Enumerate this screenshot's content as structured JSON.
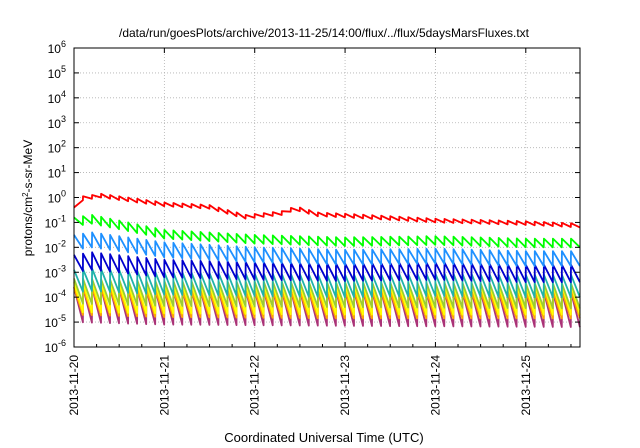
{
  "chart_data": {
    "type": "line",
    "title": "/data/run/goesPlots/archive/2013-11-25/14:00/flux/../flux/5daysMarsFluxes.txt",
    "xlabel": "Coordinated Universal Time (UTC)",
    "ylabel": {
      "pre": "protons/cm",
      "sup": "2",
      "post": "-s-sr-MeV"
    },
    "yscale": "log",
    "ylim_exp": [
      -6,
      6
    ],
    "ytick_base": "10",
    "ytick_exponents": [
      "6",
      "5",
      "4",
      "3",
      "2",
      "1",
      "0",
      "-1",
      "-2",
      "-3",
      "-4",
      "-5",
      "-6"
    ],
    "xlim_days": [
      0,
      5.6
    ],
    "x_ticks": [
      {
        "day": 0,
        "label": "2013-11-20"
      },
      {
        "day": 1,
        "label": "2013-11-21"
      },
      {
        "day": 2,
        "label": "2013-11-22"
      },
      {
        "day": 3,
        "label": "2013-11-23"
      },
      {
        "day": 4,
        "label": "2013-11-24"
      },
      {
        "day": 5,
        "label": "2013-11-25"
      }
    ],
    "grid": true,
    "legend": "none",
    "sawtooth_period_days": 0.1,
    "series": [
      {
        "color": "#ff0000",
        "envelope": [
          [
            0,
            -0.4
          ],
          [
            0.1,
            0.05
          ],
          [
            0.3,
            0.15
          ],
          [
            1.0,
            -0.2
          ],
          [
            1.5,
            -0.3
          ],
          [
            1.9,
            -0.7
          ],
          [
            2.3,
            -0.55
          ],
          [
            2.45,
            -0.35
          ],
          [
            2.7,
            -0.6
          ],
          [
            3.0,
            -0.65
          ],
          [
            4.0,
            -0.85
          ],
          [
            5.0,
            -0.95
          ],
          [
            5.6,
            -1.05
          ]
        ],
        "dip": 0.15
      },
      {
        "color": "#00ff00",
        "envelope": [
          [
            0,
            -0.8
          ],
          [
            0.2,
            -0.7
          ],
          [
            1.0,
            -1.3
          ],
          [
            2.0,
            -1.5
          ],
          [
            3.0,
            -1.6
          ],
          [
            4.0,
            -1.55
          ],
          [
            5.0,
            -1.65
          ],
          [
            5.6,
            -1.65
          ]
        ],
        "dip": 0.35
      },
      {
        "color": "#1e90ff",
        "envelope": [
          [
            0,
            -1.5
          ],
          [
            0.2,
            -1.4
          ],
          [
            1.0,
            -1.8
          ],
          [
            2.0,
            -2.0
          ],
          [
            3.0,
            -2.1
          ],
          [
            4.0,
            -2.05
          ],
          [
            5.0,
            -2.15
          ],
          [
            5.6,
            -2.15
          ]
        ],
        "dip": 0.6
      },
      {
        "color": "#0000cd",
        "envelope": [
          [
            0,
            -2.3
          ],
          [
            0.2,
            -2.2
          ],
          [
            1.0,
            -2.5
          ],
          [
            2.0,
            -2.6
          ],
          [
            3.0,
            -2.65
          ],
          [
            4.0,
            -2.6
          ],
          [
            5.0,
            -2.7
          ],
          [
            5.6,
            -2.7
          ]
        ],
        "dip": 0.7
      },
      {
        "color": "#20b2aa",
        "envelope": [
          [
            0,
            -2.9
          ],
          [
            0.2,
            -2.85
          ],
          [
            1.0,
            -3.0
          ],
          [
            2.0,
            -3.05
          ],
          [
            3.0,
            -3.1
          ],
          [
            4.0,
            -3.05
          ],
          [
            5.0,
            -3.1
          ],
          [
            5.6,
            -3.1
          ]
        ],
        "dip": 0.9
      },
      {
        "color": "#9acd32",
        "envelope": [
          [
            0,
            -3.25
          ],
          [
            1.0,
            -3.35
          ],
          [
            3.0,
            -3.4
          ],
          [
            5.6,
            -3.45
          ]
        ],
        "dip": 1.0
      },
      {
        "color": "#ffff00",
        "envelope": [
          [
            0,
            -3.4
          ],
          [
            1.0,
            -3.45
          ],
          [
            3.0,
            -3.5
          ],
          [
            5.6,
            -3.5
          ]
        ],
        "dip": 1.2
      },
      {
        "color": "#ffa500",
        "envelope": [
          [
            0,
            -3.6
          ],
          [
            1.0,
            -3.7
          ],
          [
            3.0,
            -3.75
          ],
          [
            5.6,
            -3.75
          ]
        ],
        "dip": 1.1
      },
      {
        "color": "#aa3377",
        "envelope": [
          [
            0,
            -3.6
          ],
          [
            1.0,
            -3.7
          ],
          [
            3.0,
            -3.75
          ],
          [
            5.6,
            -3.8
          ]
        ],
        "dip": 1.4
      }
    ]
  }
}
